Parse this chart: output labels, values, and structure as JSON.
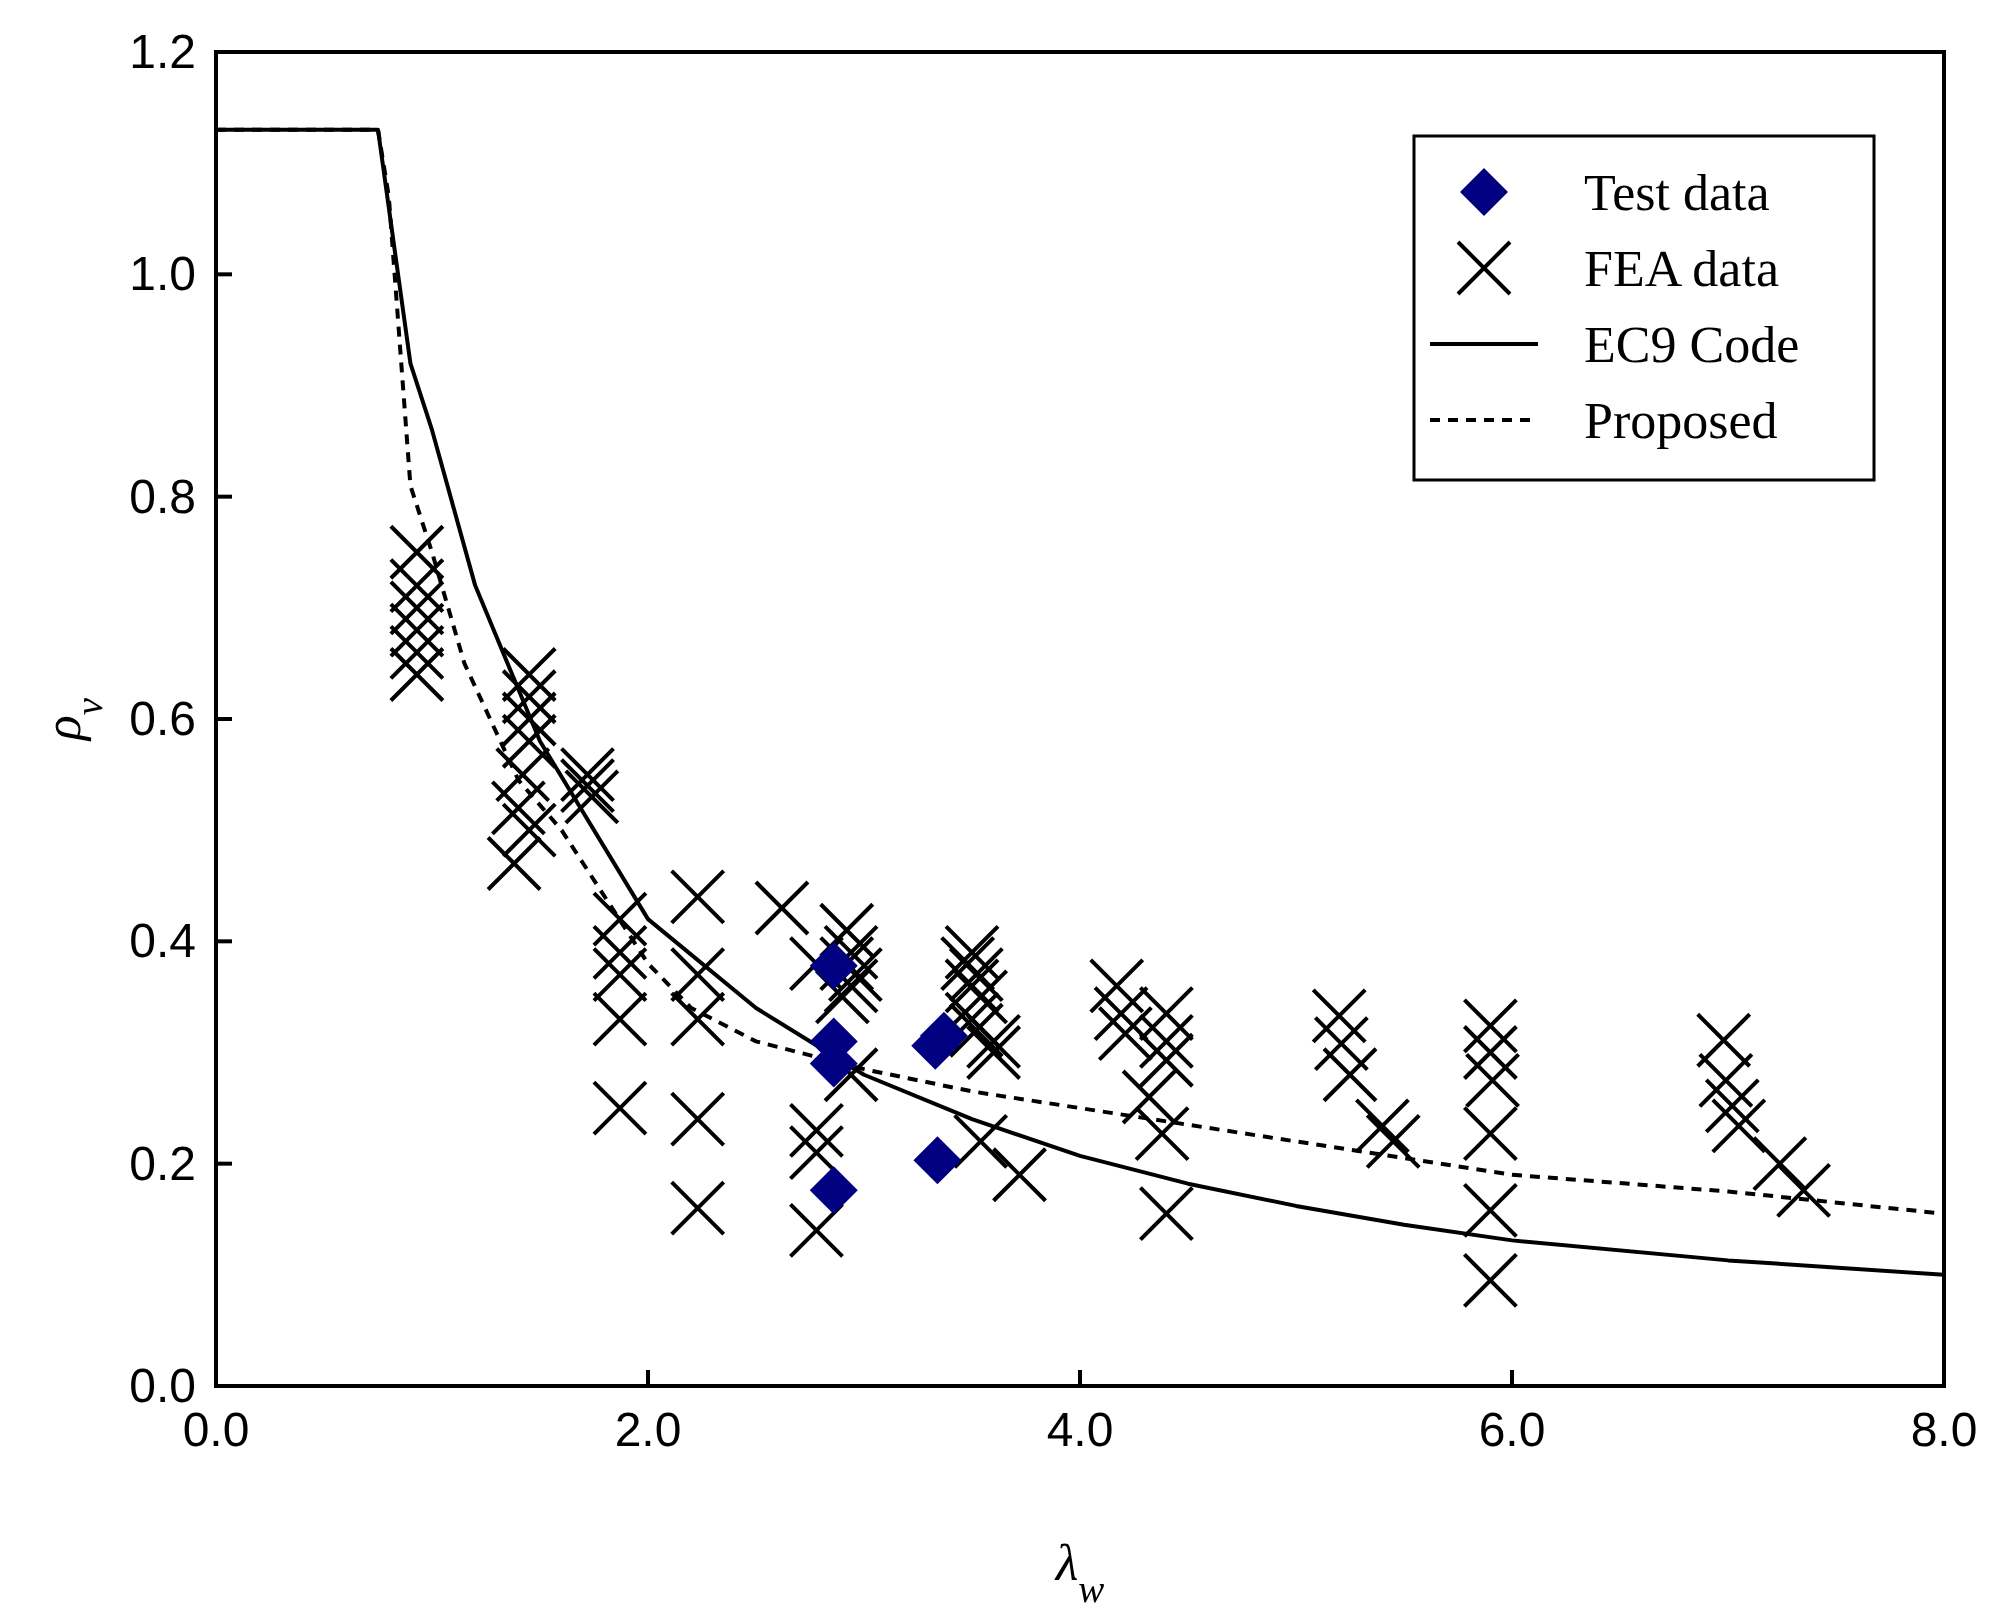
{
  "chart_data": {
    "type": "scatter",
    "xlabel": "λ$_{w}$",
    "ylabel": "ρ$_{v}$",
    "xlim": [
      0,
      8
    ],
    "ylim": [
      0,
      1.2
    ],
    "xticks": [
      {
        "value": 0,
        "label": "0.0"
      },
      {
        "value": 2,
        "label": "2.0"
      },
      {
        "value": 4,
        "label": "4.0"
      },
      {
        "value": 6,
        "label": "6.0"
      },
      {
        "value": 8,
        "label": "8.0"
      }
    ],
    "yticks": [
      {
        "value": 0,
        "label": "0.0"
      },
      {
        "value": 0.2,
        "label": "0.2"
      },
      {
        "value": 0.4,
        "label": "0.4"
      },
      {
        "value": 0.6,
        "label": "0.6"
      },
      {
        "value": 0.8,
        "label": "0.8"
      },
      {
        "value": 1,
        "label": "1.0"
      },
      {
        "value": 1.2,
        "label": "1.2"
      }
    ],
    "grid": false,
    "legend": "top right",
    "series": [
      {
        "name": "Test data",
        "marker": "diamond",
        "color": "#000080",
        "x": [
          2.86,
          2.86,
          2.86,
          2.86,
          3.33,
          3.37,
          3.34
        ],
        "values": [
          0.378,
          0.31,
          0.29,
          0.176,
          0.306,
          0.315,
          0.203
        ]
      },
      {
        "name": "FEA data",
        "marker": "cross",
        "color": "#000000",
        "x": [
          0.93,
          0.93,
          0.93,
          0.93,
          0.93,
          0.93,
          1.45,
          1.45,
          1.45,
          1.45,
          1.42,
          1.4,
          1.45,
          1.38,
          1.72,
          1.72,
          1.74,
          1.87,
          1.87,
          1.87,
          1.87,
          1.87,
          2.23,
          2.23,
          2.23,
          2.23,
          2.23,
          2.62,
          2.78,
          2.78,
          2.78,
          2.78,
          2.92,
          2.94,
          2.92,
          2.96,
          2.94,
          2.9,
          2.94,
          3.5,
          3.48,
          3.52,
          3.5,
          3.54,
          3.5,
          3.52,
          3.6,
          3.6,
          3.72,
          3.54,
          4.17,
          4.19,
          4.21,
          4.4,
          4.4,
          4.4,
          4.32,
          4.38,
          4.4,
          5.2,
          5.21,
          5.25,
          5.45,
          5.4,
          5.9,
          5.9,
          5.91,
          5.9,
          5.9,
          5.9,
          6.98,
          6.99,
          7.02,
          7.05,
          7.24,
          7.35
        ],
        "values": [
          0.75,
          0.72,
          0.7,
          0.68,
          0.66,
          0.64,
          0.64,
          0.62,
          0.6,
          0.58,
          0.55,
          0.52,
          0.5,
          0.47,
          0.55,
          0.54,
          0.53,
          0.42,
          0.39,
          0.37,
          0.33,
          0.25,
          0.44,
          0.37,
          0.33,
          0.24,
          0.16,
          0.43,
          0.38,
          0.23,
          0.21,
          0.14,
          0.41,
          0.39,
          0.38,
          0.37,
          0.36,
          0.35,
          0.28,
          0.39,
          0.38,
          0.37,
          0.36,
          0.35,
          0.33,
          0.32,
          0.31,
          0.3,
          0.19,
          0.22,
          0.36,
          0.335,
          0.317,
          0.335,
          0.31,
          0.293,
          0.26,
          0.227,
          0.155,
          0.333,
          0.308,
          0.28,
          0.22,
          0.234,
          0.324,
          0.3,
          0.275,
          0.227,
          0.158,
          0.095,
          0.311,
          0.275,
          0.252,
          0.234,
          0.2,
          0.176
        ]
      },
      {
        "name": "EC9 Code",
        "type": "line",
        "marker": "none",
        "line_style": "solid",
        "color": "#000000",
        "x": [
          0,
          0.75,
          0.9,
          1,
          1.2,
          1.5,
          2,
          2.5,
          3,
          3.5,
          4,
          4.5,
          5,
          5.5,
          6,
          7,
          8
        ],
        "values": [
          1.13,
          1.13,
          0.92,
          0.86,
          0.72,
          0.58,
          0.42,
          0.34,
          0.28,
          0.24,
          0.207,
          0.182,
          0.162,
          0.145,
          0.131,
          0.113,
          0.1
        ]
      },
      {
        "name": "Proposed",
        "type": "line",
        "marker": "none",
        "line_style": "dashed",
        "color": "#000000",
        "x": [
          0,
          0.75,
          0.8,
          0.9,
          1,
          1.15,
          1.4,
          1.6,
          2,
          2.2,
          2.5,
          3,
          3.5,
          4,
          4.5,
          5,
          6,
          7,
          8
        ],
        "values": [
          1.13,
          1.13,
          1.07,
          0.81,
          0.75,
          0.65,
          0.545,
          0.5,
          0.38,
          0.34,
          0.31,
          0.285,
          0.265,
          0.25,
          0.235,
          0.22,
          0.19,
          0.175,
          0.155
        ]
      }
    ]
  }
}
